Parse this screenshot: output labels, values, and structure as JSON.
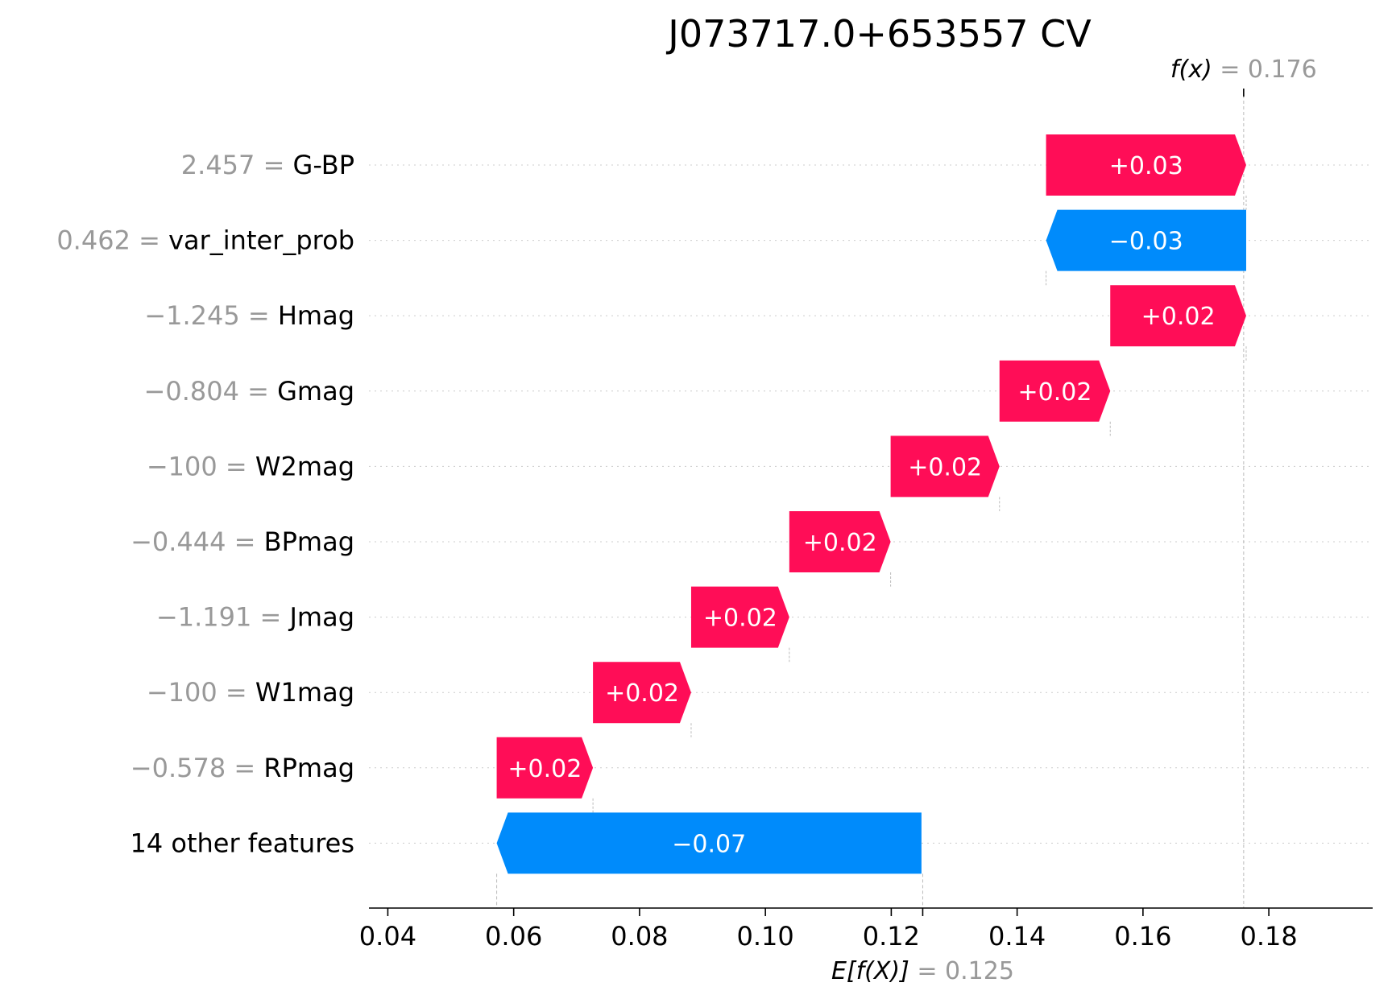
{
  "chart_data": {
    "type": "waterfall",
    "title": "J073717.0+653557 CV",
    "base_value": {
      "label": "E[f(X)]",
      "equals": "=",
      "value": 0.125,
      "display": "0.125"
    },
    "output_value": {
      "label": "f(x)",
      "equals": "=",
      "value": 0.176,
      "display": "0.176"
    },
    "xlim": [
      0.037,
      0.1965
    ],
    "xticks": [
      {
        "value": 0.04,
        "label": "0.04"
      },
      {
        "value": 0.06,
        "label": "0.06"
      },
      {
        "value": 0.08,
        "label": "0.08"
      },
      {
        "value": 0.1,
        "label": "0.10"
      },
      {
        "value": 0.12,
        "label": "0.12"
      },
      {
        "value": 0.14,
        "label": "0.14"
      },
      {
        "value": 0.16,
        "label": "0.16"
      },
      {
        "value": 0.18,
        "label": "0.18"
      }
    ],
    "grid": "horizontal-dotted",
    "colors": {
      "positive": "#ff0d57",
      "negative": "#008bfb",
      "muted_text": "#999999"
    },
    "features": [
      {
        "feature_value": "2.457",
        "equals": "=",
        "name": "G-BP",
        "start": 0.1446,
        "end": 0.1764,
        "label": "+0.03"
      },
      {
        "feature_value": "0.462",
        "equals": "=",
        "name": "var_inter_prob",
        "start": 0.1764,
        "end": 0.1446,
        "label": "−0.03"
      },
      {
        "feature_value": "−1.245",
        "equals": "=",
        "name": "Hmag",
        "start": 0.1548,
        "end": 0.1764,
        "label": "+0.02"
      },
      {
        "feature_value": "−0.804",
        "equals": "=",
        "name": "Gmag",
        "start": 0.1372,
        "end": 0.1548,
        "label": "+0.02"
      },
      {
        "feature_value": "−100",
        "equals": "=",
        "name": "W2mag",
        "start": 0.1199,
        "end": 0.1372,
        "label": "+0.02"
      },
      {
        "feature_value": "−0.444",
        "equals": "=",
        "name": "BPmag",
        "start": 0.1038,
        "end": 0.1199,
        "label": "+0.02"
      },
      {
        "feature_value": "−1.191",
        "equals": "=",
        "name": "Jmag",
        "start": 0.0882,
        "end": 0.1038,
        "label": "+0.02"
      },
      {
        "feature_value": "−100",
        "equals": "=",
        "name": "W1mag",
        "start": 0.0726,
        "end": 0.0882,
        "label": "+0.02"
      },
      {
        "feature_value": "−0.578",
        "equals": "=",
        "name": "RPmag",
        "start": 0.0573,
        "end": 0.0726,
        "label": "+0.02"
      },
      {
        "feature_value": "",
        "equals": "",
        "name": "14 other features",
        "start": 0.1248,
        "end": 0.0573,
        "label": "−0.07"
      }
    ]
  }
}
